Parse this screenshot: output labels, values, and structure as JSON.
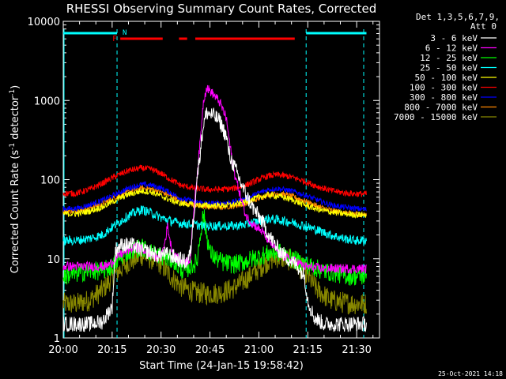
{
  "chart_data": {
    "type": "line",
    "title": "RHESSI Observing Summary Count Rates, Corrected",
    "xlabel": "Start Time (24-Jan-15 19:58:42)",
    "ylabel_main": "Corrected Count Rate (s",
    "ylabel_sup1": "-1",
    "ylabel_mid": " detector",
    "ylabel_sup2": "-1",
    "ylabel_end": ")",
    "x_unit": "minutes after 20:00",
    "xlim": [
      0,
      97
    ],
    "ylim": [
      1,
      10000
    ],
    "yscale": "log",
    "x_ticks": [
      {
        "value": 0,
        "label": "20:00"
      },
      {
        "value": 15,
        "label": "20:15"
      },
      {
        "value": 30,
        "label": "20:30"
      },
      {
        "value": 45,
        "label": "20:45"
      },
      {
        "value": 60,
        "label": "21:00"
      },
      {
        "value": 75,
        "label": "21:15"
      },
      {
        "value": 90,
        "label": "21:30"
      }
    ],
    "y_ticks": [
      {
        "value": 1,
        "label": "1"
      },
      {
        "value": 10,
        "label": "10"
      },
      {
        "value": 100,
        "label": "100"
      },
      {
        "value": 1000,
        "label": "1000"
      },
      {
        "value": 10000,
        "label": "10000"
      }
    ],
    "legend": {
      "header1": "Det 1,3,5,6,7,9,",
      "header2": "Att 0",
      "placement": "right"
    },
    "series": [
      {
        "name": "3 - 6 keV",
        "color": "#ffffff",
        "noise": 0.1,
        "points": [
          [
            0,
            1.5
          ],
          [
            4,
            1.5
          ],
          [
            8,
            1.5
          ],
          [
            12,
            1.6
          ],
          [
            15,
            2.5
          ],
          [
            16,
            13
          ],
          [
            18,
            15
          ],
          [
            21,
            15
          ],
          [
            24,
            13
          ],
          [
            27,
            12
          ],
          [
            29,
            11
          ],
          [
            31,
            11.5
          ],
          [
            33,
            11
          ],
          [
            35,
            10
          ],
          [
            38,
            9
          ],
          [
            39,
            12
          ],
          [
            41,
            100
          ],
          [
            43,
            500
          ],
          [
            44,
            700
          ],
          [
            46,
            650
          ],
          [
            48,
            550
          ],
          [
            50,
            350
          ],
          [
            51,
            200
          ],
          [
            53,
            130
          ],
          [
            55,
            80
          ],
          [
            58,
            45
          ],
          [
            61,
            30
          ],
          [
            63,
            20
          ],
          [
            66,
            13
          ],
          [
            69,
            10
          ],
          [
            72,
            8
          ],
          [
            74,
            6
          ],
          [
            75,
            3
          ],
          [
            77,
            1.8
          ],
          [
            80,
            1.5
          ],
          [
            86,
            1.5
          ],
          [
            90,
            1.5
          ],
          [
            93,
            1.5
          ]
        ]
      },
      {
        "name": "6 - 12 keV",
        "color": "#ff00ff",
        "noise": 0.06,
        "points": [
          [
            0,
            8
          ],
          [
            6,
            8
          ],
          [
            10,
            8
          ],
          [
            13,
            8
          ],
          [
            15,
            9
          ],
          [
            17,
            11
          ],
          [
            20,
            13
          ],
          [
            23,
            14
          ],
          [
            26,
            12
          ],
          [
            28,
            10.5
          ],
          [
            30,
            11
          ],
          [
            31,
            15
          ],
          [
            32,
            26
          ],
          [
            33,
            15
          ],
          [
            34,
            11
          ],
          [
            35,
            10
          ],
          [
            37,
            9
          ],
          [
            39,
            10
          ],
          [
            40,
            40
          ],
          [
            42,
            300
          ],
          [
            43,
            1000
          ],
          [
            44,
            1450
          ],
          [
            46,
            1200
          ],
          [
            48,
            950
          ],
          [
            50,
            600
          ],
          [
            51,
            300
          ],
          [
            52,
            150
          ],
          [
            54,
            70
          ],
          [
            56,
            35
          ],
          [
            58,
            28
          ],
          [
            61,
            22
          ],
          [
            63,
            17
          ],
          [
            66,
            12
          ],
          [
            69,
            10
          ],
          [
            72,
            9
          ],
          [
            74,
            8
          ],
          [
            80,
            7.5
          ],
          [
            86,
            7.5
          ],
          [
            90,
            7.5
          ],
          [
            93,
            7.5
          ]
        ]
      },
      {
        "name": "12 - 25 keV",
        "color": "#00ff00",
        "noise": 0.12,
        "points": [
          [
            0,
            6
          ],
          [
            4,
            6.5
          ],
          [
            8,
            7
          ],
          [
            12,
            7
          ],
          [
            15,
            8
          ],
          [
            18,
            11
          ],
          [
            21,
            13
          ],
          [
            24,
            14
          ],
          [
            27,
            12
          ],
          [
            30,
            11
          ],
          [
            32,
            10
          ],
          [
            34,
            9.5
          ],
          [
            35,
            8
          ],
          [
            37,
            7
          ],
          [
            39,
            8
          ],
          [
            41,
            9
          ],
          [
            42,
            20
          ],
          [
            43,
            38
          ],
          [
            44,
            20
          ],
          [
            45,
            12
          ],
          [
            47,
            10
          ],
          [
            49,
            9
          ],
          [
            52,
            8.5
          ],
          [
            55,
            9
          ],
          [
            58,
            10
          ],
          [
            61,
            11
          ],
          [
            64,
            12
          ],
          [
            67,
            12
          ],
          [
            70,
            10
          ],
          [
            73,
            9
          ],
          [
            76,
            8
          ],
          [
            80,
            7
          ],
          [
            84,
            6.5
          ],
          [
            88,
            6
          ],
          [
            93,
            6
          ]
        ]
      },
      {
        "name": "25 - 50 keV",
        "color": "#00ffff",
        "noise": 0.06,
        "points": [
          [
            0,
            17
          ],
          [
            4,
            17
          ],
          [
            8,
            18
          ],
          [
            12,
            20
          ],
          [
            16,
            27
          ],
          [
            20,
            35
          ],
          [
            24,
            42
          ],
          [
            27,
            38
          ],
          [
            30,
            33
          ],
          [
            33,
            30
          ],
          [
            36,
            28
          ],
          [
            40,
            27
          ],
          [
            44,
            26
          ],
          [
            48,
            26
          ],
          [
            52,
            26
          ],
          [
            56,
            27
          ],
          [
            60,
            30
          ],
          [
            63,
            32
          ],
          [
            66,
            31
          ],
          [
            70,
            29
          ],
          [
            74,
            26
          ],
          [
            78,
            23
          ],
          [
            82,
            20
          ],
          [
            86,
            18
          ],
          [
            90,
            17
          ],
          [
            93,
            17
          ]
        ]
      },
      {
        "name": "50 - 100 keV",
        "color": "#ffff00",
        "noise": 0.04,
        "points": [
          [
            0,
            37
          ],
          [
            4,
            37
          ],
          [
            8,
            40
          ],
          [
            12,
            45
          ],
          [
            16,
            55
          ],
          [
            20,
            65
          ],
          [
            24,
            72
          ],
          [
            27,
            70
          ],
          [
            30,
            62
          ],
          [
            33,
            55
          ],
          [
            36,
            50
          ],
          [
            40,
            48
          ],
          [
            44,
            47
          ],
          [
            48,
            47
          ],
          [
            52,
            48
          ],
          [
            56,
            52
          ],
          [
            60,
            60
          ],
          [
            63,
            64
          ],
          [
            66,
            62
          ],
          [
            70,
            56
          ],
          [
            74,
            48
          ],
          [
            78,
            42
          ],
          [
            82,
            39
          ],
          [
            86,
            37
          ],
          [
            90,
            36
          ],
          [
            93,
            36
          ]
        ]
      },
      {
        "name": "100 - 300 keV",
        "color": "#ff0000",
        "noise": 0.04,
        "points": [
          [
            0,
            67
          ],
          [
            4,
            67
          ],
          [
            8,
            75
          ],
          [
            12,
            90
          ],
          [
            16,
            110
          ],
          [
            20,
            130
          ],
          [
            24,
            140
          ],
          [
            27,
            135
          ],
          [
            30,
            120
          ],
          [
            33,
            100
          ],
          [
            36,
            85
          ],
          [
            40,
            78
          ],
          [
            44,
            75
          ],
          [
            48,
            75
          ],
          [
            52,
            77
          ],
          [
            56,
            85
          ],
          [
            60,
            100
          ],
          [
            63,
            112
          ],
          [
            66,
            115
          ],
          [
            70,
            108
          ],
          [
            74,
            95
          ],
          [
            78,
            82
          ],
          [
            82,
            73
          ],
          [
            86,
            68
          ],
          [
            90,
            66
          ],
          [
            93,
            66
          ]
        ]
      },
      {
        "name": "300 - 800 keV",
        "color": "#0000ff",
        "noise": 0.035,
        "points": [
          [
            0,
            43
          ],
          [
            4,
            43
          ],
          [
            8,
            48
          ],
          [
            12,
            55
          ],
          [
            16,
            65
          ],
          [
            20,
            78
          ],
          [
            24,
            87
          ],
          [
            27,
            85
          ],
          [
            30,
            78
          ],
          [
            33,
            68
          ],
          [
            36,
            58
          ],
          [
            40,
            53
          ],
          [
            44,
            50
          ],
          [
            48,
            50
          ],
          [
            52,
            52
          ],
          [
            56,
            57
          ],
          [
            60,
            68
          ],
          [
            63,
            75
          ],
          [
            66,
            77
          ],
          [
            70,
            72
          ],
          [
            74,
            64
          ],
          [
            78,
            55
          ],
          [
            82,
            48
          ],
          [
            86,
            45
          ],
          [
            90,
            43
          ],
          [
            93,
            42
          ]
        ]
      },
      {
        "name": "800 - 7000 keV",
        "color": "#ff8800",
        "noise": 0.035,
        "points": [
          [
            0,
            40
          ],
          [
            4,
            40
          ],
          [
            8,
            44
          ],
          [
            12,
            50
          ],
          [
            16,
            60
          ],
          [
            20,
            70
          ],
          [
            24,
            78
          ],
          [
            27,
            76
          ],
          [
            30,
            70
          ],
          [
            33,
            62
          ],
          [
            36,
            54
          ],
          [
            40,
            48
          ],
          [
            44,
            45
          ],
          [
            48,
            45
          ],
          [
            52,
            46
          ],
          [
            56,
            50
          ],
          [
            60,
            58
          ],
          [
            63,
            65
          ],
          [
            66,
            67
          ],
          [
            70,
            62
          ],
          [
            74,
            54
          ],
          [
            78,
            46
          ],
          [
            82,
            41
          ],
          [
            86,
            38
          ],
          [
            90,
            37
          ],
          [
            93,
            36
          ]
        ]
      },
      {
        "name": "7000 - 15000 keV",
        "color": "#888800",
        "noise": 0.14,
        "points": [
          [
            0,
            2.7
          ],
          [
            4,
            2.7
          ],
          [
            8,
            3
          ],
          [
            12,
            4
          ],
          [
            16,
            6.5
          ],
          [
            20,
            9
          ],
          [
            24,
            11
          ],
          [
            27,
            10
          ],
          [
            30,
            8.5
          ],
          [
            33,
            6
          ],
          [
            36,
            4.5
          ],
          [
            40,
            3.8
          ],
          [
            44,
            3.6
          ],
          [
            48,
            3.7
          ],
          [
            52,
            4.2
          ],
          [
            56,
            5.5
          ],
          [
            60,
            7.5
          ],
          [
            63,
            9.5
          ],
          [
            66,
            10.5
          ],
          [
            70,
            9.5
          ],
          [
            74,
            7
          ],
          [
            78,
            4
          ],
          [
            82,
            3
          ],
          [
            86,
            2.8
          ],
          [
            90,
            2.7
          ],
          [
            93,
            2.7
          ]
        ]
      }
    ],
    "night_bar": {
      "color": "#00ffff",
      "label": "N",
      "segments": [
        [
          0,
          16.5
        ],
        [
          74.5,
          93
        ]
      ]
    },
    "flare_bar": {
      "color": "#ff0000",
      "label": "F",
      "segments": [
        [
          17.5,
          30.5
        ],
        [
          35.5,
          38
        ],
        [
          40.5,
          71
        ]
      ]
    },
    "saa_lines_x": [
      16.5,
      74.5
    ]
  },
  "footer": {
    "timestamp": "25-Oct-2021 14:18"
  }
}
